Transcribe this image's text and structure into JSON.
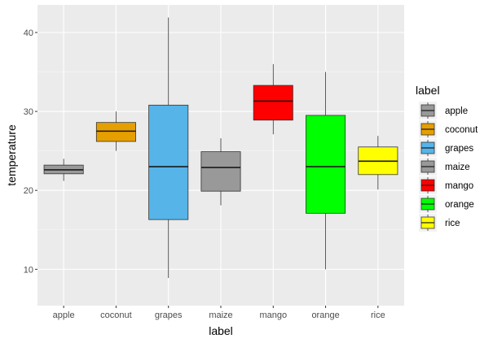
{
  "chart_data": {
    "type": "boxplot",
    "xlabel": "label",
    "ylabel": "temperature",
    "ylim": [
      5.4,
      43.5
    ],
    "y_ticks": [
      10,
      20,
      30,
      40
    ],
    "grid": true,
    "legend": {
      "title": "label",
      "placement": "right"
    },
    "categories": [
      "apple",
      "coconut",
      "grapes",
      "maize",
      "mango",
      "orange",
      "rice"
    ],
    "series": [
      {
        "name": "apple",
        "color": "#999999",
        "min": 21.2,
        "q1": 22.1,
        "median": 22.6,
        "q3": 23.2,
        "max": 24.0
      },
      {
        "name": "coconut",
        "color": "#E69F00",
        "min": 25.0,
        "q1": 26.2,
        "median": 27.5,
        "q3": 28.6,
        "max": 30.0
      },
      {
        "name": "grapes",
        "color": "#56B4E9",
        "min": 8.9,
        "q1": 16.3,
        "median": 23.0,
        "q3": 30.8,
        "max": 41.9
      },
      {
        "name": "maize",
        "color": "#999999",
        "min": 18.1,
        "q1": 19.9,
        "median": 22.9,
        "q3": 24.9,
        "max": 26.6
      },
      {
        "name": "mango",
        "color": "#FF0000",
        "min": 27.1,
        "q1": 28.9,
        "median": 31.3,
        "q3": 33.3,
        "max": 36.0
      },
      {
        "name": "orange",
        "color": "#00FF00",
        "min": 10.0,
        "q1": 17.1,
        "median": 23.0,
        "q3": 29.5,
        "max": 35.0
      },
      {
        "name": "rice",
        "color": "#FFFF00",
        "min": 20.1,
        "q1": 22.0,
        "median": 23.7,
        "q3": 25.5,
        "max": 26.9
      }
    ]
  }
}
